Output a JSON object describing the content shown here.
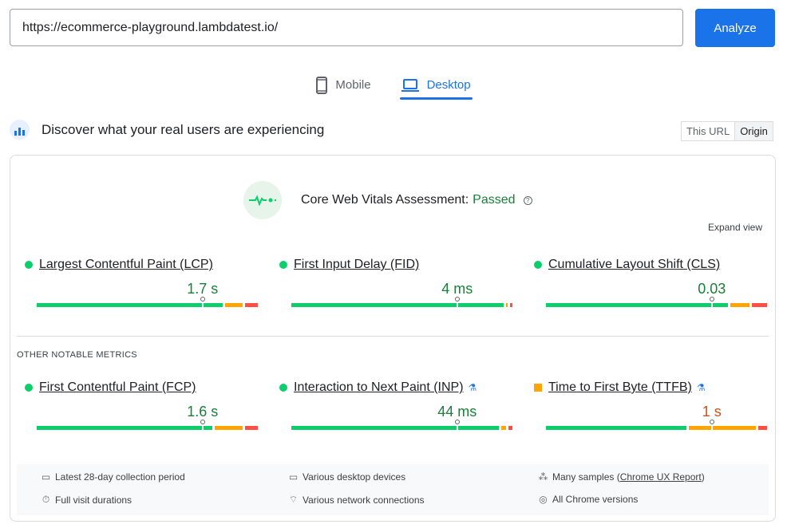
{
  "search": {
    "url": "https://ecommerce-playground.lambdatest.io/",
    "analyze": "Analyze"
  },
  "tabs": [
    {
      "label": "Mobile",
      "icon": "smartphone-icon",
      "active": false
    },
    {
      "label": "Desktop",
      "icon": "laptop-icon",
      "active": true
    }
  ],
  "discover": {
    "title": "Discover what your real users are experiencing",
    "toggle": [
      "This URL",
      "Origin"
    ],
    "selected": "Origin"
  },
  "assessment": {
    "label": "Core Web Vitals Assessment:",
    "status": "Passed",
    "expand": "Expand view"
  },
  "colors": {
    "good": "#0cce6b",
    "average": "#ffa400",
    "poor": "#ff4e42",
    "good_text": "#188038",
    "average_text": "#c5521f",
    "accent": "#1a73e8"
  },
  "core_metrics": [
    {
      "name": "Largest Contentful Paint (LCP)",
      "value": "1.7 s",
      "rating": "good",
      "distribution": [
        86,
        8,
        6
      ],
      "marker_pct": 75
    },
    {
      "name": "First Input Delay (FID)",
      "value": "4 ms",
      "rating": "good",
      "distribution": [
        98,
        1,
        1
      ],
      "marker_pct": 75
    },
    {
      "name": "Cumulative Layout Shift (CLS)",
      "value": "0.03",
      "rating": "good",
      "distribution": [
        84,
        9,
        7
      ],
      "marker_pct": 75
    }
  ],
  "other_label": "OTHER NOTABLE METRICS",
  "other_metrics": [
    {
      "name": "First Contentful Paint (FCP)",
      "value": "1.6 s",
      "rating": "good",
      "distribution": [
        81,
        13,
        6
      ],
      "marker_pct": 75,
      "experimental": false
    },
    {
      "name": "Interaction to Next Paint (INP)",
      "value": "44 ms",
      "rating": "good",
      "distribution": [
        96,
        2,
        2
      ],
      "marker_pct": 75,
      "experimental": true
    },
    {
      "name": "Time to First Byte (TTFB)",
      "value": "1 s",
      "rating": "average",
      "distribution": [
        65,
        31,
        4
      ],
      "marker_pct": 75,
      "experimental": true
    }
  ],
  "footer": {
    "period": "Latest 28-day collection period",
    "devices": "Various desktop devices",
    "samples": "Many samples (",
    "samples_link": "Chrome UX Report",
    "samples_end": ")",
    "durations": "Full visit durations",
    "network": "Various network connections",
    "versions": "All Chrome versions"
  }
}
